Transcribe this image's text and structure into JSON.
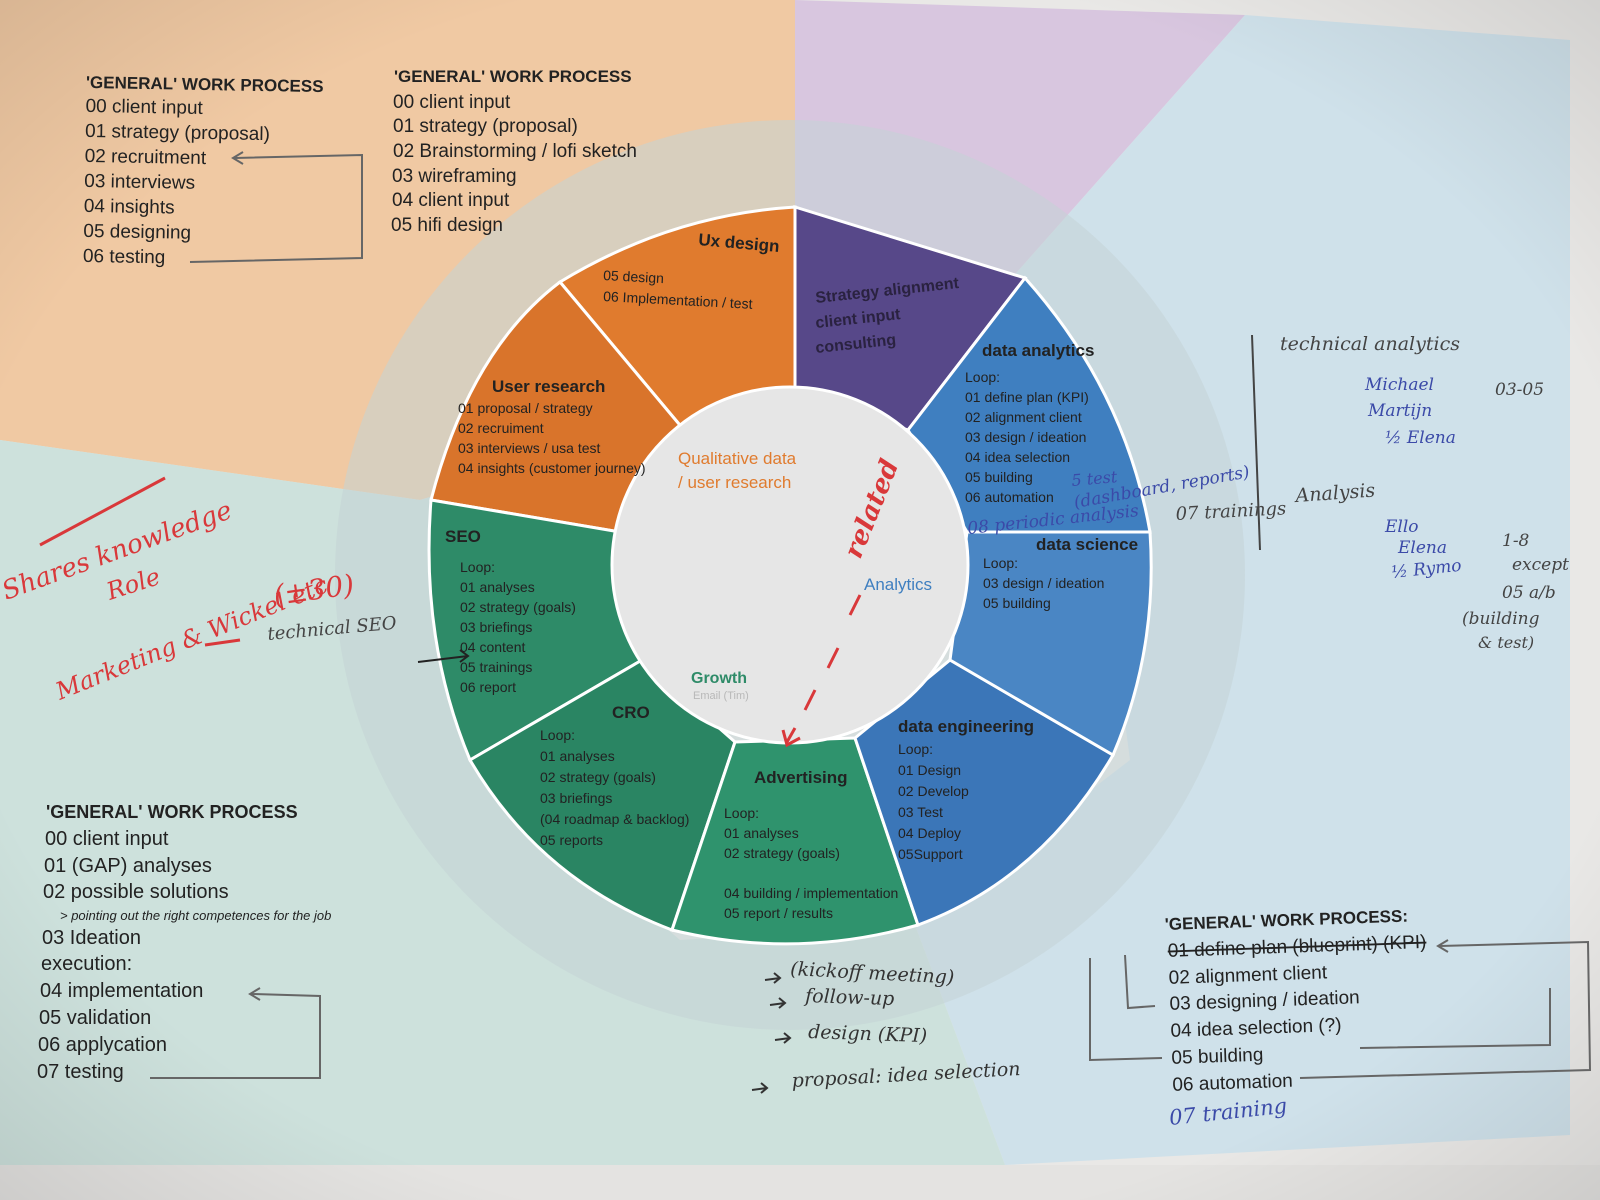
{
  "colors": {
    "orange_bg": "#f0c9a3",
    "purple_bg": "#d8c6df",
    "blue_bg": "#cfe1ea",
    "green_bg": "#cde1dc",
    "ring_outer": "#c4d3d5",
    "center": "#e6e6e6",
    "orange": "#e07b2e",
    "orange_dark": "#d06d24",
    "purple": "#574889",
    "blue": "#3f7fc0",
    "blue_mid": "#4a86c4",
    "green": "#2e8b68",
    "green_dark": "#257a58",
    "teal_bg": "#c9dfdc",
    "red_ink": "#d9383a",
    "pen_ink": "#3b4aa8",
    "text": "#222222"
  },
  "processes": {
    "top_left": {
      "title": "'GENERAL' WORK PROCESS",
      "items": [
        "00 client input",
        "01 strategy (proposal)",
        "02 recruitment",
        "03 interviews",
        "04 insights",
        "05 designing",
        "06 testing"
      ]
    },
    "top_mid": {
      "title": "'GENERAL' WORK PROCESS",
      "items": [
        "00 client input",
        "01 strategy (proposal)",
        "02 Brainstorming / lofi sketch",
        "03 wireframing",
        "04 client input",
        "05 hifi design"
      ]
    },
    "bottom_left": {
      "title": "'GENERAL' WORK PROCESS",
      "items": [
        "00 client input",
        "01 (GAP) analyses",
        "02 possible solutions"
      ],
      "note": "> pointing out the right competences for the job",
      "items2": [
        "03 Ideation",
        "execution:",
        "04 implementation",
        "05 validation",
        "06 applycation",
        "07 testing"
      ]
    },
    "bottom_right": {
      "title": "'GENERAL' WORK PROCESS:",
      "items": [
        "01 define plan (blueprint) (KPI)",
        "02 alignment client",
        "03 designing / ideation",
        "04 idea selection (?)",
        "05 building",
        "06 automation"
      ]
    }
  },
  "wheel": {
    "center_top": [
      "Qualitative data",
      "/ user research"
    ],
    "center_right": "Analytics",
    "center_growth": "Growth",
    "center_growth_sub": "Email (Tim)",
    "segments": {
      "ux": {
        "title": "Ux design",
        "lines": [
          "05 design",
          "06 Implementation / test"
        ]
      },
      "strategy": {
        "lines": [
          "Strategy alignment",
          "client input",
          "consulting"
        ]
      },
      "data_analytics": {
        "title": "data analytics",
        "lines": [
          "Loop:",
          "01 define plan (KPI)",
          "02 alignment client",
          "03 design / ideation",
          "04 idea selection",
          "05 building",
          "06 automation"
        ]
      },
      "data_science": {
        "title": "data science",
        "lines": [
          "Loop:",
          "03 design / ideation",
          "05 building"
        ]
      },
      "data_engineering": {
        "title": "data engineering",
        "lines": [
          "Loop:",
          "01 Design",
          "02 Develop",
          "03 Test",
          "04 Deploy",
          "05Support"
        ]
      },
      "advertising": {
        "title": "Advertising",
        "lines": [
          "Loop:",
          "01 analyses",
          "02 strategy (goals)"
        ],
        "lines2": [
          "04 building / implementation",
          "05 report / results"
        ]
      },
      "cro": {
        "title": "CRO",
        "lines": [
          "Loop:",
          "01 analyses",
          "02 strategy (goals)",
          "03 briefings",
          "(04 roadmap & backlog)",
          "05 reports"
        ]
      },
      "seo": {
        "title": "SEO",
        "lines": [
          "Loop:",
          "01 analyses",
          "02 strategy (goals)",
          "03 briefings",
          "04 content",
          "05 trainings",
          "06 report"
        ]
      },
      "user_research": {
        "title": "User research",
        "lines": [
          "01 proposal / strategy",
          "02 recruiment",
          "03 interviews / usa test",
          "04 insights (customer journey)"
        ]
      }
    }
  },
  "handwriting": {
    "red_left": [
      "Shares knowledge",
      "Role",
      "Marketing & Wickel etc",
      "(±30)"
    ],
    "technical_seo": "technical SEO",
    "related": "related",
    "test_note": "5 test",
    "dashboard_note": "(dashboard, reports)",
    "trainings_note": "07 trainings",
    "periodic_note": "08 periodic analysis",
    "right_col": [
      "technical analytics",
      "Michael",
      "Martijn",
      "½ Elena",
      "03-05"
    ],
    "analysis": "Analysis",
    "right_col2": [
      "Ello",
      "Elena",
      "½ Rymo",
      "1-8",
      "except",
      "05 a/b",
      "(building",
      "& test)"
    ],
    "bottom_notes": [
      "(kickoff meeting)",
      "follow-up",
      "design (KPI)",
      "proposal: idea selection"
    ],
    "training_br": "07 training"
  }
}
